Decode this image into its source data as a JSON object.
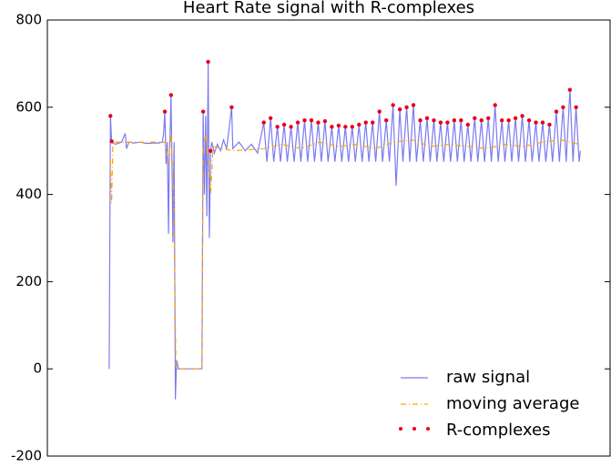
{
  "chart_data": {
    "type": "line",
    "title": "Heart Rate signal with R-complexes",
    "xlim": [
      -100,
      810
    ],
    "ylim": [
      -200,
      800
    ],
    "yticks": [
      -200,
      0,
      200,
      400,
      600,
      800
    ],
    "legend": "lower right",
    "series": [
      {
        "name": "raw signal",
        "color": "#7b7bf0",
        "linestyle": "solid",
        "marker": "none",
        "x": [
          0,
          2,
          4,
          10,
          20,
          26,
          28,
          32,
          40,
          50,
          60,
          70,
          80,
          86,
          88,
          90,
          92,
          94,
          96,
          97,
          99,
          100,
          102,
          103,
          105,
          107,
          109,
          112,
          150,
          152,
          154,
          156,
          158,
          160,
          162,
          164,
          166,
          170,
          175,
          180,
          185,
          190,
          198,
          200,
          210,
          220,
          230,
          240,
          250,
          255,
          261,
          266,
          272,
          277,
          283,
          288,
          294,
          299,
          305,
          310,
          316,
          321,
          327,
          332,
          338,
          343,
          349,
          354,
          360,
          365,
          371,
          376,
          382,
          387,
          393,
          398,
          404,
          409,
          415,
          420,
          426,
          431,
          437,
          442,
          448,
          453,
          459,
          464,
          470,
          475,
          481,
          486,
          492,
          497,
          503,
          508,
          514,
          519,
          525,
          530,
          536,
          541,
          547,
          552,
          558,
          563,
          569,
          574,
          580,
          585,
          591,
          596,
          602,
          607,
          613,
          618,
          624,
          629,
          635,
          640,
          646,
          651,
          657,
          662,
          668,
          673,
          679,
          684,
          690,
          695,
          701,
          706,
          712,
          717,
          723,
          728,
          734,
          739,
          745,
          750,
          755,
          760,
          762
        ],
        "values": [
          0,
          580,
          520,
          515,
          520,
          540,
          505,
          520,
          518,
          520,
          517,
          518,
          518,
          520,
          540,
          590,
          470,
          520,
          310,
          470,
          560,
          628,
          420,
          290,
          520,
          -70,
          20,
          0,
          0,
          590,
          400,
          580,
          350,
          704,
          300,
          500,
          520,
          495,
          515,
          500,
          525,
          505,
          600,
          505,
          520,
          500,
          515,
          495,
          565,
          475,
          575,
          475,
          555,
          475,
          560,
          475,
          555,
          475,
          565,
          475,
          570,
          475,
          570,
          475,
          565,
          475,
          568,
          475,
          555,
          475,
          558,
          475,
          555,
          475,
          555,
          475,
          560,
          475,
          565,
          475,
          565,
          475,
          590,
          475,
          570,
          475,
          605,
          420,
          595,
          475,
          600,
          475,
          605,
          475,
          570,
          475,
          575,
          475,
          570,
          475,
          565,
          475,
          565,
          475,
          570,
          475,
          570,
          475,
          560,
          475,
          575,
          475,
          570,
          475,
          575,
          475,
          605,
          475,
          570,
          475,
          570,
          475,
          575,
          475,
          580,
          475,
          570,
          475,
          565,
          475,
          565,
          475,
          560,
          475,
          590,
          475,
          600,
          475,
          640,
          475,
          600,
          475,
          500
        ]
      },
      {
        "name": "moving average",
        "color": "orange",
        "linestyle": "dashdot",
        "marker": "none",
        "x": [
          2,
          4,
          6,
          90,
          96,
          100,
          104,
          108,
          150,
          152,
          156,
          160,
          164,
          168,
          200,
          250,
          280,
          310,
          340,
          370,
          400,
          430,
          460,
          490,
          520,
          550,
          580,
          610,
          640,
          670,
          700,
          730,
          760
        ],
        "values": [
          480,
          380,
          520,
          520,
          470,
          540,
          420,
          0,
          0,
          500,
          540,
          480,
          400,
          510,
          500,
          505,
          515,
          505,
          520,
          510,
          515,
          505,
          520,
          525,
          510,
          515,
          510,
          505,
          515,
          510,
          520,
          525,
          515
        ]
      },
      {
        "name": "R-complexes",
        "color": "#e8001c",
        "linestyle": "none",
        "marker": "o",
        "x": [
          2,
          4,
          90,
          100,
          152,
          160,
          164,
          198,
          250,
          261,
          272,
          283,
          294,
          305,
          316,
          327,
          338,
          349,
          360,
          371,
          382,
          393,
          404,
          415,
          426,
          437,
          448,
          459,
          470,
          481,
          492,
          503,
          514,
          525,
          536,
          547,
          558,
          569,
          580,
          591,
          602,
          613,
          624,
          635,
          646,
          657,
          668,
          679,
          690,
          701,
          712,
          723,
          734,
          745,
          755
        ],
        "values": [
          580,
          522,
          590,
          628,
          590,
          704,
          500,
          600,
          565,
          575,
          555,
          560,
          555,
          565,
          570,
          570,
          565,
          568,
          555,
          558,
          555,
          555,
          560,
          565,
          565,
          590,
          570,
          605,
          595,
          600,
          605,
          570,
          575,
          570,
          565,
          565,
          570,
          570,
          560,
          575,
          570,
          575,
          605,
          570,
          570,
          575,
          580,
          570,
          565,
          565,
          560,
          590,
          600,
          640,
          600
        ]
      }
    ]
  }
}
